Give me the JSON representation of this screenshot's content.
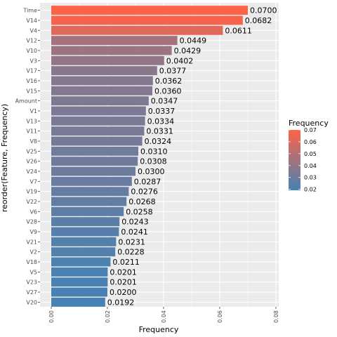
{
  "chart_data": {
    "type": "bar",
    "orientation": "horizontal",
    "xlabel": "Frequency",
    "ylabel": "reorder(Feature, Frequency)",
    "xlim": [
      0,
      0.08
    ],
    "x_ticks": [
      {
        "value": 0.0,
        "label": "0.00"
      },
      {
        "value": 0.02,
        "label": "0.02"
      },
      {
        "value": 0.04,
        "label": "0.04"
      },
      {
        "value": 0.06,
        "label": "0.06"
      },
      {
        "value": 0.08,
        "label": "0.08"
      }
    ],
    "grid": true,
    "bars": [
      {
        "category": "Time",
        "value": 0.07,
        "label": "0.0700"
      },
      {
        "category": "V14",
        "value": 0.0682,
        "label": "0.0682"
      },
      {
        "category": "V4",
        "value": 0.0611,
        "label": "0.0611"
      },
      {
        "category": "V12",
        "value": 0.0449,
        "label": "0.0449"
      },
      {
        "category": "V10",
        "value": 0.0429,
        "label": "0.0429"
      },
      {
        "category": "V3",
        "value": 0.0402,
        "label": "0.0402"
      },
      {
        "category": "V17",
        "value": 0.0377,
        "label": "0.0377"
      },
      {
        "category": "V16",
        "value": 0.0362,
        "label": "0.0362"
      },
      {
        "category": "V15",
        "value": 0.036,
        "label": "0.0360"
      },
      {
        "category": "Amount",
        "value": 0.0347,
        "label": "0.0347"
      },
      {
        "category": "V1",
        "value": 0.0337,
        "label": "0.0337"
      },
      {
        "category": "V13",
        "value": 0.0334,
        "label": "0.0334"
      },
      {
        "category": "V11",
        "value": 0.0331,
        "label": "0.0331"
      },
      {
        "category": "V8",
        "value": 0.0324,
        "label": "0.0324"
      },
      {
        "category": "V25",
        "value": 0.031,
        "label": "0.0310"
      },
      {
        "category": "V26",
        "value": 0.0308,
        "label": "0.0308"
      },
      {
        "category": "V24",
        "value": 0.03,
        "label": "0.0300"
      },
      {
        "category": "V7",
        "value": 0.0287,
        "label": "0.0287"
      },
      {
        "category": "V19",
        "value": 0.0276,
        "label": "0.0276"
      },
      {
        "category": "V22",
        "value": 0.0268,
        "label": "0.0268"
      },
      {
        "category": "V6",
        "value": 0.0258,
        "label": "0.0258"
      },
      {
        "category": "V28",
        "value": 0.0243,
        "label": "0.0243"
      },
      {
        "category": "V9",
        "value": 0.0241,
        "label": "0.0241"
      },
      {
        "category": "V21",
        "value": 0.0231,
        "label": "0.0231"
      },
      {
        "category": "V2",
        "value": 0.0228,
        "label": "0.0228"
      },
      {
        "category": "V18",
        "value": 0.0211,
        "label": "0.0211"
      },
      {
        "category": "V5",
        "value": 0.0201,
        "label": "0.0201"
      },
      {
        "category": "V23",
        "value": 0.0201,
        "label": "0.0201"
      },
      {
        "category": "V27",
        "value": 0.02,
        "label": "0.0200"
      },
      {
        "category": "V20",
        "value": 0.0192,
        "label": "0.0192"
      }
    ],
    "legend": {
      "title": "Frequency",
      "placement": "right",
      "range": [
        0.0192,
        0.07
      ],
      "ticks": [
        {
          "value": 0.02,
          "label": "0.02"
        },
        {
          "value": 0.03,
          "label": "0.03"
        },
        {
          "value": 0.04,
          "label": "0.04"
        },
        {
          "value": 0.05,
          "label": "0.05"
        },
        {
          "value": 0.06,
          "label": "0.06"
        },
        {
          "value": 0.07,
          "label": "0.07"
        }
      ]
    },
    "colors": {
      "low": "#4682b4",
      "high": "#ff6347",
      "panel_background": "#ebebeb",
      "grid_line": "#ffffff",
      "tick_text": "#4d4d4d"
    }
  }
}
